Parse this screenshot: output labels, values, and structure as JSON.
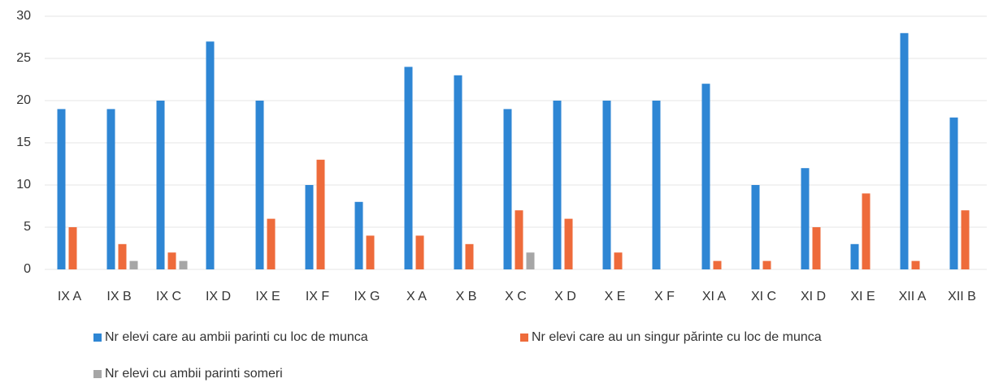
{
  "chart_data": {
    "type": "bar",
    "categories": [
      "IX A",
      "IX B",
      "IX C",
      "IX D",
      "IX E",
      "IX F",
      "IX G",
      "X A",
      "X B",
      "X C",
      "X D",
      "X E",
      "X F",
      "XI A",
      "XI C",
      "XI D",
      "XI E",
      "XII A",
      "XII B"
    ],
    "series": [
      {
        "name": "Nr elevi care au ambii parinti cu loc de munca",
        "color": "#2e86d4",
        "values": [
          19,
          19,
          20,
          27,
          20,
          10,
          8,
          24,
          23,
          19,
          20,
          20,
          20,
          22,
          10,
          12,
          3,
          28,
          18
        ]
      },
      {
        "name": "Nr elevi care au un singur părinte cu loc de munca",
        "color": "#ee6b3b",
        "values": [
          5,
          3,
          2,
          0,
          6,
          13,
          4,
          4,
          3,
          7,
          6,
          2,
          0,
          1,
          1,
          5,
          9,
          1,
          7
        ]
      },
      {
        "name": "Nr elevi cu ambii parinti someri",
        "color": "#a6a6a6",
        "values": [
          0,
          1,
          1,
          0,
          0,
          0,
          0,
          0,
          0,
          2,
          0,
          0,
          0,
          0,
          0,
          0,
          0,
          0,
          0
        ]
      }
    ],
    "ylim": [
      0,
      30
    ],
    "yticks": [
      0,
      5,
      10,
      15,
      20,
      25,
      30
    ],
    "grid": true
  }
}
